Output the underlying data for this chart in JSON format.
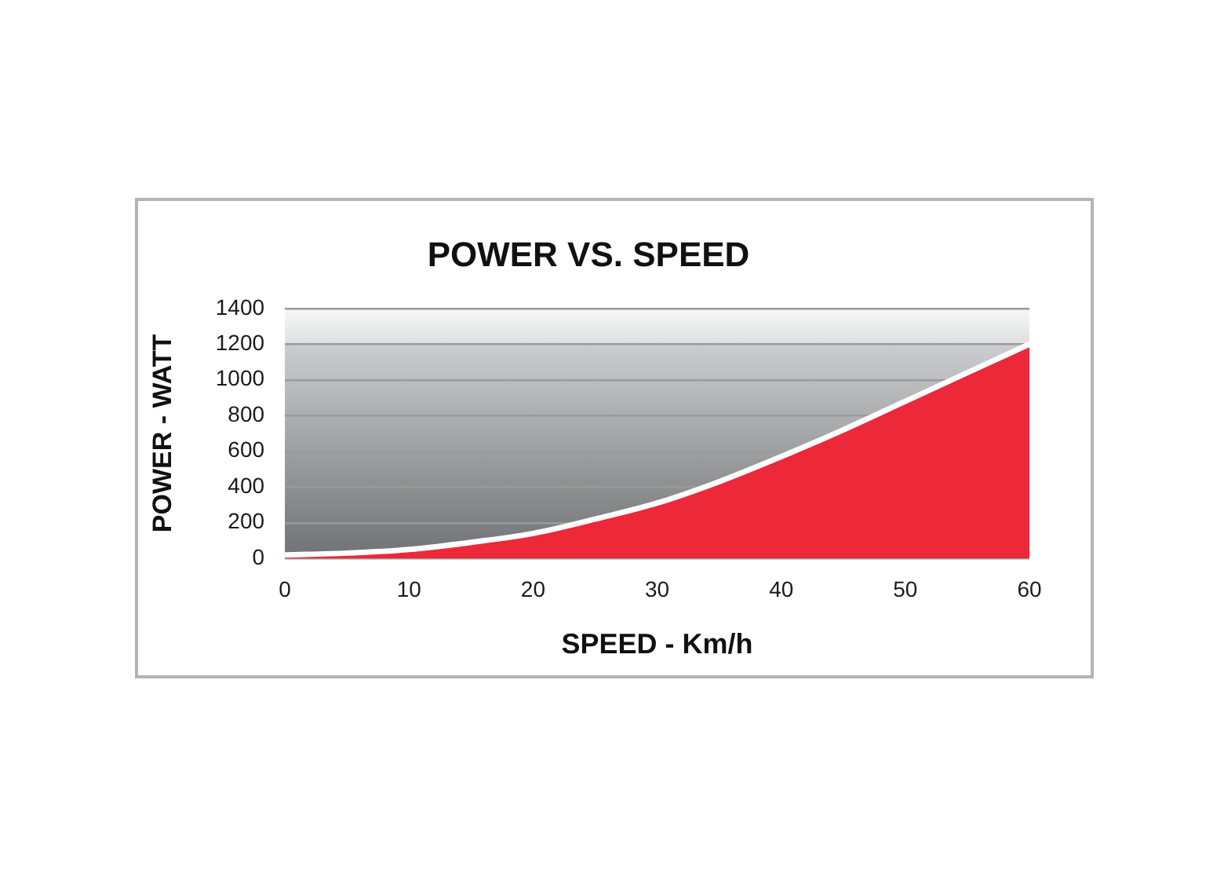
{
  "chart_data": {
    "type": "area",
    "title": "POWER VS. SPEED",
    "xlabel": "SPEED - Km/h",
    "ylabel": "POWER - WATT",
    "x": [
      0,
      5,
      10,
      15,
      20,
      25,
      30,
      35,
      40,
      45,
      50,
      55,
      60
    ],
    "series": [
      {
        "color": "#ec2839",
        "values": [
          20,
          30,
          50,
          90,
          140,
          220,
          310,
          430,
          570,
          720,
          880,
          1040,
          1200
        ]
      }
    ],
    "xlim": [
      0,
      60
    ],
    "xticks": [
      0,
      10,
      20,
      30,
      40,
      50,
      60
    ],
    "ylim": [
      0,
      1400
    ],
    "yticks": [
      0,
      200,
      400,
      600,
      800,
      1000,
      1200,
      1400
    ],
    "grid": "y"
  }
}
